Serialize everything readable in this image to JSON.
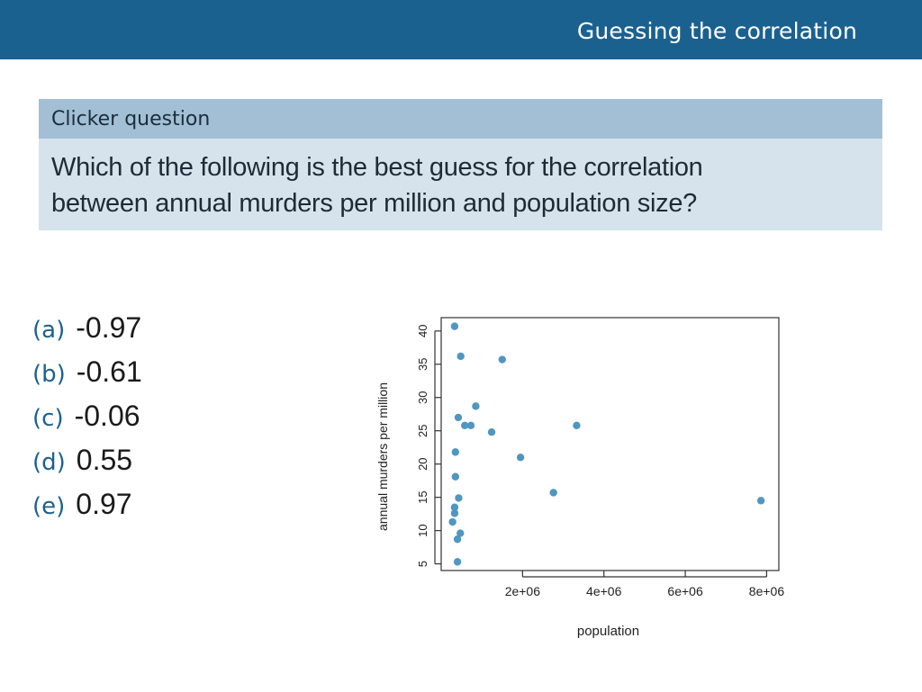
{
  "header": {
    "title": "Guessing the correlation"
  },
  "question": {
    "label": "Clicker question",
    "lines": [
      "Which of the following is the best guess for the correlation",
      "between annual murders per million and population  size?"
    ]
  },
  "options": [
    {
      "letter": "(a)",
      "value": "-0.97"
    },
    {
      "letter": "(b)",
      "value": "-0.61"
    },
    {
      "letter": "(c)",
      "value": "-0.06"
    },
    {
      "letter": "(d)",
      "value": "0.55"
    },
    {
      "letter": "(e)",
      "value": "0.97"
    }
  ],
  "chart_data": {
    "type": "scatter",
    "xlabel": "population",
    "ylabel": "annual murders per million",
    "xlim": [
      0,
      8300000
    ],
    "ylim": [
      4,
      42
    ],
    "x_ticks": [
      2000000,
      4000000,
      6000000,
      8000000
    ],
    "x_tick_labels": [
      "2e+06",
      "4e+06",
      "6e+06",
      "8e+06"
    ],
    "y_ticks": [
      5,
      10,
      15,
      20,
      25,
      30,
      35,
      40
    ],
    "y_tick_labels": [
      "5",
      "10",
      "15",
      "20",
      "25",
      "30",
      "35",
      "40"
    ],
    "grid": false,
    "point_color": "#4f97c1",
    "x": [
      330000,
      480000,
      1500000,
      850000,
      420000,
      730000,
      580000,
      1240000,
      350000,
      1950000,
      350000,
      2760000,
      3330000,
      7860000,
      430000,
      330000,
      330000,
      280000,
      470000,
      400000,
      400000
    ],
    "y": [
      40.7,
      36.2,
      35.7,
      28.7,
      27.0,
      25.8,
      25.8,
      24.8,
      21.8,
      21.0,
      18.1,
      15.7,
      25.8,
      14.5,
      14.9,
      13.5,
      12.6,
      11.3,
      9.6,
      8.7,
      5.3
    ]
  }
}
